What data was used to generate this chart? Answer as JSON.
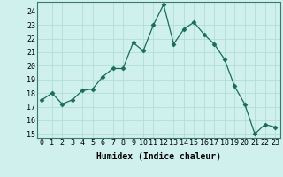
{
  "title": "",
  "xlabel": "Humidex (Indice chaleur)",
  "x": [
    0,
    1,
    2,
    3,
    4,
    5,
    6,
    7,
    8,
    9,
    10,
    11,
    12,
    13,
    14,
    15,
    16,
    17,
    18,
    19,
    20,
    21,
    22,
    23
  ],
  "y": [
    17.5,
    18.0,
    17.2,
    17.5,
    18.2,
    18.3,
    19.2,
    19.8,
    19.8,
    21.7,
    21.1,
    23.0,
    24.5,
    21.6,
    22.7,
    23.2,
    22.3,
    21.6,
    20.5,
    18.5,
    17.2,
    15.0,
    15.7,
    15.5
  ],
  "ylim": [
    14.7,
    24.7
  ],
  "yticks": [
    15,
    16,
    17,
    18,
    19,
    20,
    21,
    22,
    23,
    24
  ],
  "line_color": "#1a6b5a",
  "marker": "D",
  "marker_size": 2.5,
  "bg_color": "#cff0ec",
  "grid_color": "#b0ddd8",
  "label_fontsize": 7,
  "tick_fontsize": 6
}
